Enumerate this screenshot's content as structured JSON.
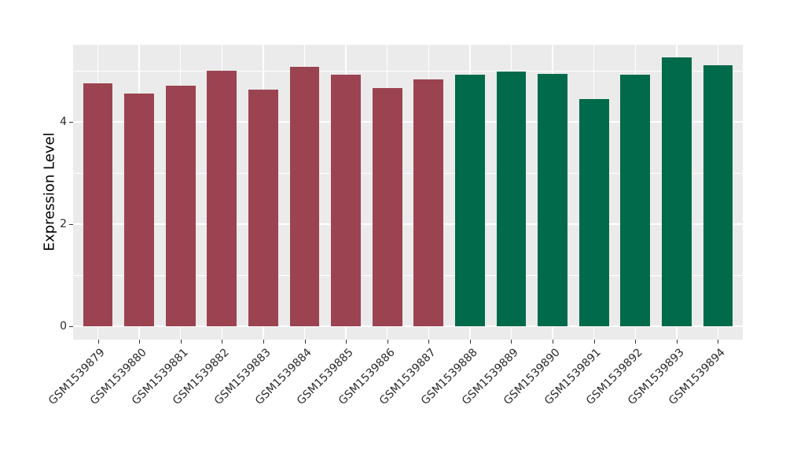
{
  "figure": {
    "background_color": "#FFFFFF",
    "panel_background_color": "#EBEBEB",
    "gridline_color": "#FFFFFF",
    "tick_color": "#333333"
  },
  "y_axis": {
    "title": "Expression Level",
    "tick_labels": [
      "0",
      "2",
      "4"
    ],
    "tick_values": [
      0,
      2,
      4
    ],
    "minor_gridline_values": [
      1,
      3,
      5
    ]
  },
  "x_axis": {
    "title": "",
    "tick_labels": [
      "GSM1539879",
      "GSM1539880",
      "GSM1539881",
      "GSM1539882",
      "GSM1539883",
      "GSM1539884",
      "GSM1539885",
      "GSM1539886",
      "GSM1539887",
      "GSM1539888",
      "GSM1539889",
      "GSM1539890",
      "GSM1539891",
      "GSM1539892",
      "GSM1539893",
      "GSM1539894"
    ],
    "label_rotation_deg": 45
  },
  "chart_data": {
    "type": "bar",
    "title": "",
    "xlabel": "",
    "ylabel": "Expression Level",
    "ylim": [
      0,
      5.52
    ],
    "grid": true,
    "legend": false,
    "categories": [
      "GSM1539879",
      "GSM1539880",
      "GSM1539881",
      "GSM1539882",
      "GSM1539883",
      "GSM1539884",
      "GSM1539885",
      "GSM1539886",
      "GSM1539887",
      "GSM1539888",
      "GSM1539889",
      "GSM1539890",
      "GSM1539891",
      "GSM1539892",
      "GSM1539893",
      "GSM1539894"
    ],
    "values": [
      4.75,
      4.55,
      4.71,
      5.0,
      4.63,
      5.07,
      4.93,
      4.66,
      4.83,
      4.92,
      4.98,
      4.94,
      4.45,
      4.92,
      5.26,
      5.11
    ],
    "groups": [
      "group1",
      "group1",
      "group1",
      "group1",
      "group1",
      "group1",
      "group1",
      "group1",
      "group1",
      "group2",
      "group2",
      "group2",
      "group2",
      "group2",
      "group2",
      "group2"
    ],
    "group_colors": {
      "group1": "#9C4351",
      "group2": "#006A4A"
    }
  }
}
